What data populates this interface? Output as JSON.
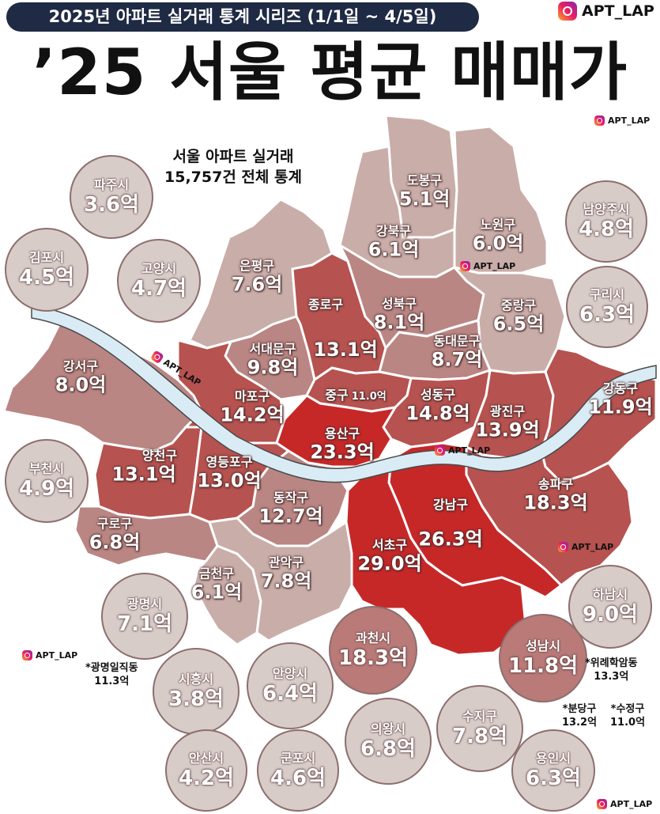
{
  "header": {
    "series": "2025년 아파트 실거래 통계 시리즈 (1/1일 ~ 4/5일)",
    "brand": "APT_LAP",
    "title": "’25 서울 평균 매매가"
  },
  "subtitle": {
    "line1": "서울 아파트 실거래",
    "line2": "15,757건 전체 통계"
  },
  "watermark": "APT_LAP",
  "river_label": "APT_LAP",
  "districts": [
    {
      "name": "도봉구",
      "value": "5.1억"
    },
    {
      "name": "노원구",
      "value": "6.0억"
    },
    {
      "name": "강북구",
      "value": "6.1억"
    },
    {
      "name": "은평구",
      "value": "7.6억"
    },
    {
      "name": "종로구",
      "value": "13.1억"
    },
    {
      "name": "성북구",
      "value": "8.1억"
    },
    {
      "name": "중랑구",
      "value": "6.5억"
    },
    {
      "name": "서대문구",
      "value": "9.8억"
    },
    {
      "name": "동대문구",
      "value": "8.7억"
    },
    {
      "name": "중구",
      "value": "11.0억"
    },
    {
      "name": "강서구",
      "value": "8.0억"
    },
    {
      "name": "마포구",
      "value": "14.2억"
    },
    {
      "name": "성동구",
      "value": "14.8억"
    },
    {
      "name": "광진구",
      "value": "13.9억"
    },
    {
      "name": "강동구",
      "value": "11.9억"
    },
    {
      "name": "용산구",
      "value": "23.3억"
    },
    {
      "name": "양천구",
      "value": "13.1억"
    },
    {
      "name": "영등포구",
      "value": "13.0억"
    },
    {
      "name": "동작구",
      "value": "12.7억"
    },
    {
      "name": "송파구",
      "value": "18.3억"
    },
    {
      "name": "강남구",
      "value": "26.3억"
    },
    {
      "name": "구로구",
      "value": "6.8억"
    },
    {
      "name": "서초구",
      "value": "29.0억"
    },
    {
      "name": "금천구",
      "value": "6.1억"
    },
    {
      "name": "관악구",
      "value": "7.8억"
    }
  ],
  "cities": [
    {
      "name": "파주시",
      "value": "3.6억"
    },
    {
      "name": "김포시",
      "value": "4.5억"
    },
    {
      "name": "고양시",
      "value": "4.7억"
    },
    {
      "name": "남양주시",
      "value": "4.8억"
    },
    {
      "name": "구리시",
      "value": "6.3억"
    },
    {
      "name": "부천시",
      "value": "4.9억"
    },
    {
      "name": "하남시",
      "value": "9.0억"
    },
    {
      "name": "광명시",
      "value": "7.1억"
    },
    {
      "name": "과천시",
      "value": "18.3억"
    },
    {
      "name": "성남시",
      "value": "11.8억"
    },
    {
      "name": "시흥시",
      "value": "3.8억"
    },
    {
      "name": "안양시",
      "value": "6.4억"
    },
    {
      "name": "의왕시",
      "value": "6.8억"
    },
    {
      "name": "수지구",
      "value": "7.8억"
    },
    {
      "name": "안산시",
      "value": "4.2억"
    },
    {
      "name": "군포시",
      "value": "4.6억"
    },
    {
      "name": "용인시",
      "value": "6.3억"
    }
  ],
  "notes": {
    "gwangmyeong": {
      "name": "*광명일직동",
      "value": "11.3억"
    },
    "wirye": {
      "name": "*위례학암동",
      "value": "13.3억"
    },
    "bundang": {
      "name": "*분당구",
      "value": "13.2억"
    },
    "sujeong": {
      "name": "*수정구",
      "value": "11.0억"
    }
  },
  "colors": {
    "navy": "#1f2a44",
    "light": "#d8ccc9",
    "pale": "#c9ada9",
    "mid": "#b98683",
    "strong": "#b6524f",
    "top": "#c62828",
    "river": "#d9ecf5"
  }
}
